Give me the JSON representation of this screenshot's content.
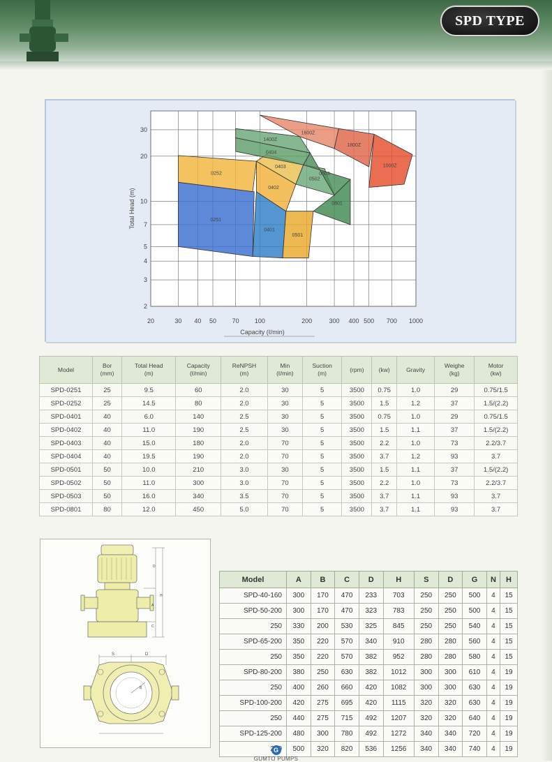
{
  "header": {
    "badge": "SPD TYPE"
  },
  "chart_data": {
    "type": "area",
    "xlabel": "Capacity (ℓ/min)",
    "ylabel": "Total Head (m)",
    "x_scale": "log",
    "y_scale": "log",
    "x_ticks": [
      20,
      30,
      40,
      50,
      70,
      100,
      200,
      300,
      400,
      500,
      700,
      1000
    ],
    "x_tick_labels": [
      "20",
      "30",
      "40",
      "50",
      "70",
      "100",
      "200",
      "300",
      "400",
      "500",
      "700",
      "1000"
    ],
    "y_ticks": [
      2,
      3,
      4,
      5,
      7,
      10,
      20,
      30
    ],
    "y_tick_labels": [
      "2",
      "3",
      "4",
      "5",
      "7",
      "10",
      "20",
      "30"
    ],
    "xlim": [
      20,
      1000
    ],
    "ylim": [
      2,
      40
    ],
    "regions": [
      {
        "label": "0251",
        "color": "#3b6fd0",
        "points": [
          [
            30,
            5.0
          ],
          [
            90,
            4.3
          ],
          [
            92,
            11.6
          ],
          [
            30,
            13.4
          ]
        ]
      },
      {
        "label": "0252",
        "color": "#f1b53c",
        "points": [
          [
            30,
            20.2
          ],
          [
            95,
            18.5
          ],
          [
            90,
            11.6
          ],
          [
            30,
            13.4
          ]
        ]
      },
      {
        "label": "0401",
        "color": "#2e7fc8",
        "points": [
          [
            90,
            4.3
          ],
          [
            140,
            4.2
          ],
          [
            147,
            8.6
          ],
          [
            95,
            11.6
          ]
        ]
      },
      {
        "label": "0402",
        "color": "#f2b23a",
        "points": [
          [
            95,
            18.5
          ],
          [
            170,
            13.0
          ],
          [
            147,
            8.6
          ],
          [
            95,
            11.6
          ]
        ]
      },
      {
        "label": "0403",
        "color": "#ecc050",
        "points": [
          [
            110,
            20.5
          ],
          [
            190,
            17.5
          ],
          [
            170,
            13.0
          ],
          [
            95,
            18.5
          ]
        ]
      },
      {
        "label": "0501",
        "color": "#e9a82a",
        "points": [
          [
            140,
            4.2
          ],
          [
            205,
            4.2
          ],
          [
            220,
            8.6
          ],
          [
            147,
            8.6
          ]
        ]
      },
      {
        "label": "0404",
        "color": "#5e9d69",
        "points": [
          [
            70,
            26.5
          ],
          [
            210,
            21.0
          ],
          [
            190,
            17.5
          ],
          [
            70,
            21.5
          ]
        ]
      },
      {
        "label": "0502",
        "color": "#6aaa7a",
        "points": [
          [
            170,
            13.0
          ],
          [
            300,
            11.0
          ],
          [
            260,
            16.5
          ],
          [
            190,
            17.5
          ]
        ]
      },
      {
        "label": "0503",
        "color": "#4c8e5a",
        "points": [
          [
            190,
            17.5
          ],
          [
            380,
            14.0
          ],
          [
            300,
            11.0
          ],
          [
            210,
            21.0
          ]
        ]
      },
      {
        "label": "0801",
        "color": "#3e8a52",
        "points": [
          [
            220,
            8.6
          ],
          [
            380,
            7.0
          ],
          [
            380,
            14.0
          ],
          [
            300,
            11.0
          ]
        ]
      },
      {
        "label": "1400Z",
        "color": "#6aa879",
        "points": [
          [
            70,
            30.5
          ],
          [
            180,
            27.0
          ],
          [
            210,
            21.0
          ],
          [
            70,
            26.5
          ]
        ]
      },
      {
        "label": "1600Z",
        "color": "#e8876a",
        "points": [
          [
            100,
            37.5
          ],
          [
            320,
            30.5
          ],
          [
            300,
            22.5
          ],
          [
            180,
            27.0
          ]
        ]
      },
      {
        "label": "1800Z",
        "color": "#e06548",
        "points": [
          [
            320,
            30.5
          ],
          [
            540,
            28.0
          ],
          [
            500,
            17.0
          ],
          [
            300,
            22.5
          ]
        ]
      },
      {
        "label": "1000Z",
        "color": "#e44e2c",
        "points": [
          [
            540,
            28.0
          ],
          [
            950,
            20.5
          ],
          [
            840,
            13.0
          ],
          [
            500,
            12.4
          ]
        ]
      }
    ]
  },
  "spec_table": {
    "headers": [
      "Model",
      "Bor\n(mm)",
      "Total Head\n(m)",
      "Capacity\n(ℓ/min)",
      "ReNPSH\n(m)",
      "Min\n(ℓ/min)",
      "Suction\n(m)",
      "(rpm)",
      "(kw)",
      "Gravity",
      "Weighe\n(kg)",
      "Motor\n(kw)"
    ],
    "rows": [
      [
        "SPD-0251",
        "25",
        "9.5",
        "60",
        "2.0",
        "30",
        "5",
        "3500",
        "0.75",
        "1.0",
        "29",
        "0.75/1.5"
      ],
      [
        "SPD-0252",
        "25",
        "14.5",
        "80",
        "2.0",
        "30",
        "5",
        "3500",
        "1.5",
        "1.2",
        "37",
        "1.5/(2.2)"
      ],
      [
        "SPD-0401",
        "40",
        "6.0",
        "140",
        "2.5",
        "30",
        "5",
        "3500",
        "0.75",
        "1.0",
        "29",
        "0.75/1.5"
      ],
      [
        "SPD-0402",
        "40",
        "11.0",
        "190",
        "2.5",
        "30",
        "5",
        "3500",
        "1.5",
        "1.1",
        "37",
        "1.5/(2.2)"
      ],
      [
        "SPD-0403",
        "40",
        "15.0",
        "180",
        "2.0",
        "70",
        "5",
        "3500",
        "2.2",
        "1.0",
        "73",
        "2.2/3.7"
      ],
      [
        "SPD-0404",
        "40",
        "19.5",
        "190",
        "2.0",
        "70",
        "5",
        "3500",
        "3.7",
        "1.2",
        "93",
        "3.7"
      ],
      [
        "SPD-0501",
        "50",
        "10.0",
        "210",
        "3.0",
        "30",
        "5",
        "3500",
        "1.5",
        "1.1",
        "37",
        "1.5/(2.2)"
      ],
      [
        "SPD-0502",
        "50",
        "11.0",
        "300",
        "3.0",
        "70",
        "5",
        "3500",
        "2.2",
        "1.0",
        "73",
        "2.2/3.7"
      ],
      [
        "SPD-0503",
        "50",
        "16.0",
        "340",
        "3.5",
        "70",
        "5",
        "3500",
        "3.7",
        "1.1",
        "93",
        "3.7"
      ],
      [
        "SPD-0801",
        "80",
        "12.0",
        "450",
        "5.0",
        "70",
        "5",
        "3500",
        "3.7",
        "1.1",
        "93",
        "3.7"
      ]
    ]
  },
  "drawing": {
    "labels": [
      "S",
      "D",
      "D",
      "H",
      "A",
      "C",
      "B"
    ]
  },
  "dim_table": {
    "headers": [
      "Model",
      "A",
      "B",
      "C",
      "D",
      "H",
      "S",
      "D",
      "G",
      "N",
      "H"
    ],
    "rows": [
      [
        "SPD-40-160",
        "300",
        "170",
        "470",
        "233",
        "703",
        "250",
        "250",
        "500",
        "4",
        "15"
      ],
      [
        "SPD-50-200",
        "300",
        "170",
        "470",
        "323",
        "783",
        "250",
        "250",
        "500",
        "4",
        "15"
      ],
      [
        "250",
        "330",
        "200",
        "530",
        "325",
        "845",
        "250",
        "250",
        "540",
        "4",
        "15"
      ],
      [
        "SPD-65-200",
        "350",
        "220",
        "570",
        "340",
        "910",
        "280",
        "280",
        "560",
        "4",
        "15"
      ],
      [
        "250",
        "350",
        "220",
        "570",
        "382",
        "952",
        "280",
        "280",
        "580",
        "4",
        "15"
      ],
      [
        "SPD-80-200",
        "380",
        "250",
        "630",
        "382",
        "1012",
        "300",
        "300",
        "610",
        "4",
        "19"
      ],
      [
        "250",
        "400",
        "260",
        "660",
        "420",
        "1082",
        "300",
        "300",
        "630",
        "4",
        "19"
      ],
      [
        "SPD-100-200",
        "420",
        "275",
        "695",
        "420",
        "1115",
        "320",
        "320",
        "630",
        "4",
        "19"
      ],
      [
        "250",
        "440",
        "275",
        "715",
        "492",
        "1207",
        "320",
        "320",
        "640",
        "4",
        "19"
      ],
      [
        "SPD-125-200",
        "480",
        "300",
        "780",
        "492",
        "1272",
        "340",
        "340",
        "720",
        "4",
        "19"
      ],
      [
        "250",
        "500",
        "320",
        "820",
        "536",
        "1256",
        "340",
        "340",
        "740",
        "4",
        "19"
      ]
    ]
  },
  "footer": {
    "logo": "G",
    "brand": "GUMTO PUMPS"
  }
}
